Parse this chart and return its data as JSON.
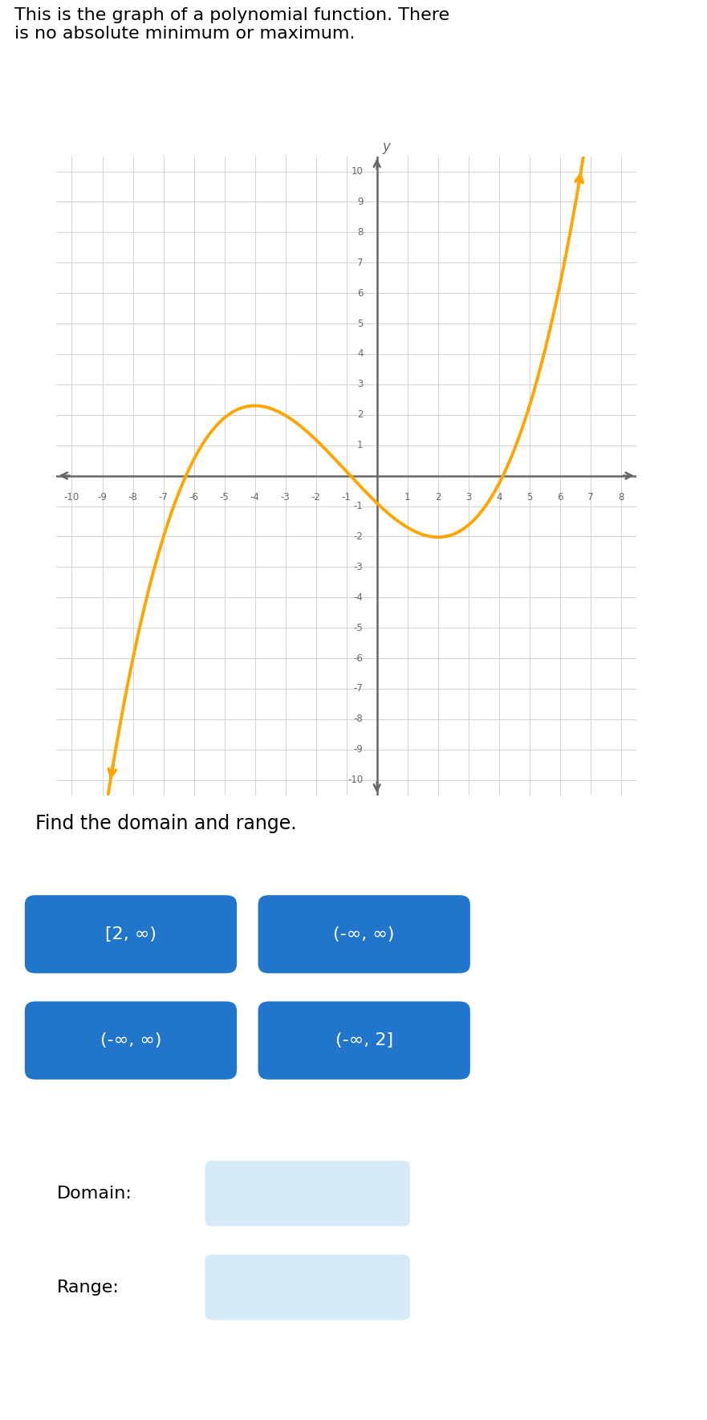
{
  "title_text": "This is the graph of a polynomial function. There\nis no absolute minimum or maximum.",
  "find_text": "Find the domain and range.",
  "domain_label": "Domain:",
  "range_label": "Range:",
  "xlim": [
    -10.5,
    8.5
  ],
  "ylim": [
    -10.5,
    10.5
  ],
  "xticks": [
    -10,
    -9,
    -8,
    -7,
    -6,
    -5,
    -4,
    -3,
    -2,
    -1,
    1,
    2,
    3,
    4,
    5,
    6,
    7,
    8
  ],
  "yticks": [
    -10,
    -9,
    -8,
    -7,
    -6,
    -5,
    -4,
    -3,
    -2,
    -1,
    1,
    2,
    3,
    4,
    5,
    6,
    7,
    8,
    9,
    10
  ],
  "curve_color": "#FFA500",
  "axis_color": "#666666",
  "grid_color": "#CCCCCC",
  "bg_color": "#FFFFFF",
  "button_color": "#2176CC",
  "button_text_color": "#FFFFFF",
  "light_blue": "#D6EAF8",
  "buttons": [
    "[2, ∞)",
    "(-∞, ∞)",
    "(-∞, ∞)",
    "(-∞, 2]"
  ],
  "sidebar_color": "#2AABEE",
  "sidebar_right_color": "#E84040",
  "poly_a": 0.04,
  "poly_b": 0.12,
  "poly_c": -0.96,
  "poly_d": -0.9
}
